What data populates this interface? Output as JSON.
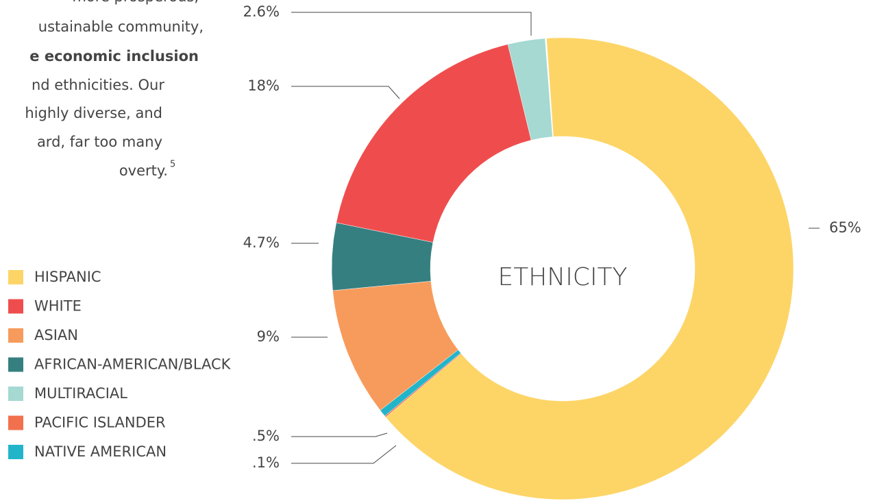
{
  "intro_text": {
    "lines": [
      "more prosperous,",
      "ustainable community,",
      "e economic inclusion",
      "nd ethnicities. Our",
      "highly diverse, and",
      "ard, far too many",
      "overty."
    ],
    "footnote": "5"
  },
  "chart_data": {
    "type": "donut",
    "title": "ETHNICITY",
    "categories": [
      "HISPANIC",
      "WHITE",
      "ASIAN",
      "AFRICAN-AMERICAN/BLACK",
      "MULTIRACIAL",
      "PACIFIC ISLANDER",
      "NATIVE AMERICAN"
    ],
    "values": [
      65,
      18,
      9,
      4.7,
      2.6,
      0.1,
      0.5
    ],
    "value_labels": [
      "65%",
      "18%",
      "9%",
      "4.7%",
      "2.6%",
      ".1%",
      ".5%"
    ],
    "colors": [
      "#fdd567",
      "#ef4d4d",
      "#f79b5c",
      "#367f80",
      "#a5d9d2",
      "#f2704d",
      "#22b5c9"
    ],
    "legend": "left"
  }
}
